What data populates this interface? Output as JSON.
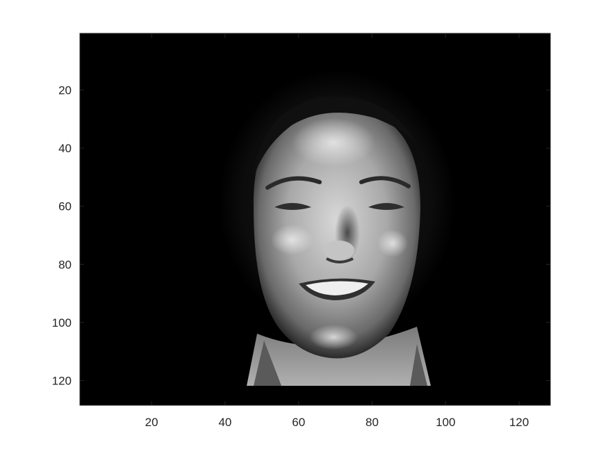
{
  "chart_data": {
    "type": "heatmap",
    "title": "",
    "xlabel": "",
    "ylabel": "",
    "colormap": "gray",
    "xlim": [
      0.5,
      128.5
    ],
    "ylim": [
      0.5,
      128.5
    ],
    "y_direction": "reverse",
    "grid": false,
    "x_ticks": [
      20,
      40,
      60,
      80,
      100,
      120
    ],
    "y_ticks": [
      20,
      40,
      60,
      80,
      100,
      120
    ],
    "x_tick_labels": [
      "20",
      "40",
      "60",
      "80",
      "100",
      "120"
    ],
    "y_tick_labels": [
      "20",
      "40",
      "60",
      "80",
      "100",
      "120"
    ],
    "image_content": "grayscale portrait of a smiling woman with dark hair on a black background",
    "colors": {
      "axis": "#262626",
      "background": "#000000"
    }
  }
}
